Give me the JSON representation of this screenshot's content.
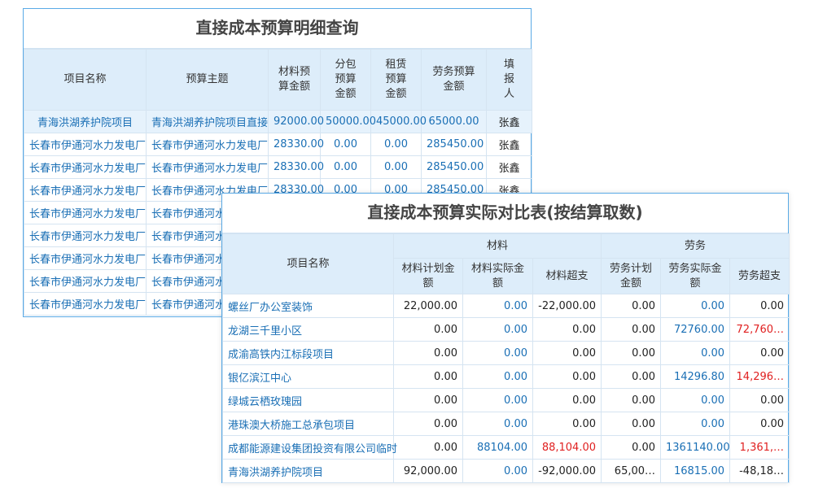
{
  "table1": {
    "title": "直接成本预算明细查询",
    "headers": [
      "项目名称",
      "预算主题",
      "材料预算金额",
      "分包预算金额",
      "租赁预算金额",
      "劳务预算金额",
      "填报人"
    ],
    "rows": [
      [
        "青海洪湖养护院项目",
        "青海洪湖养护院项目直接",
        "92000.00",
        "50000.00",
        "45000.00",
        "65000.00",
        "张鑫"
      ],
      [
        "长春市伊通河水力发电厂",
        "长春市伊通河水力发电厂",
        "28330.00",
        "0.00",
        "0.00",
        "285450.00",
        "张鑫"
      ],
      [
        "长春市伊通河水力发电厂",
        "长春市伊通河水力发电厂",
        "28330.00",
        "0.00",
        "0.00",
        "285450.00",
        "张鑫"
      ],
      [
        "长春市伊通河水力发电厂",
        "长春市伊通河水力发电厂",
        "28330.00",
        "0.00",
        "0.00",
        "285450.00",
        "张鑫"
      ],
      [
        "长春市伊通河水力发电厂",
        "长春市伊通河水"
      ],
      [
        "长春市伊通河水力发电厂",
        "长春市伊通河水"
      ],
      [
        "长春市伊通河水力发电厂",
        "长春市伊通河水"
      ],
      [
        "长春市伊通河水力发电厂",
        "长春市伊通河水"
      ],
      [
        "长春市伊通河水力发电厂",
        "长春市伊通河水"
      ]
    ]
  },
  "table2": {
    "title": "直接成本预算实际对比表(按结算取数)",
    "name_header": "项目名称",
    "groups": [
      "材料",
      "劳务"
    ],
    "headers": [
      "材料计划金额",
      "材料实际金额",
      "材料超支",
      "劳务计划金额",
      "劳务实际金额",
      "劳务超支"
    ],
    "rows": [
      [
        "螺丝厂办公室装饰",
        "22,000.00",
        "0.00",
        "-22,000.00",
        "0.00",
        "0.00",
        "0.00"
      ],
      [
        "龙湖三千里小区",
        "0.00",
        "0.00",
        "0.00",
        "0.00",
        "72760.00",
        "72,760…"
      ],
      [
        "成渝高铁内江标段项目",
        "0.00",
        "0.00",
        "0.00",
        "0.00",
        "0.00",
        "0.00"
      ],
      [
        "银亿滨江中心",
        "0.00",
        "0.00",
        "0.00",
        "0.00",
        "14296.80",
        "14,296…"
      ],
      [
        "绿城云栖玫瑰园",
        "0.00",
        "0.00",
        "0.00",
        "0.00",
        "0.00",
        "0.00"
      ],
      [
        "港珠澳大桥施工总承包项目",
        "0.00",
        "0.00",
        "0.00",
        "0.00",
        "0.00",
        "0.00"
      ],
      [
        "成都能源建设集团投资有限公司临时",
        "0.00",
        "88104.00",
        "88,104.00",
        "0.00",
        "1361140.00",
        "1,361,…"
      ],
      [
        "青海洪湖养护院项目",
        "92,000.00",
        "0.00",
        "-92,000.00",
        "65,00…",
        "16815.00",
        "-48,18…"
      ]
    ]
  }
}
